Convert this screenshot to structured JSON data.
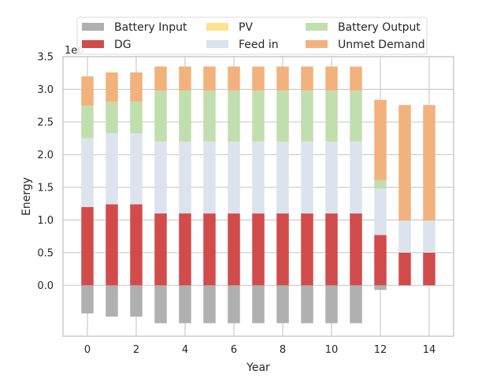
{
  "chart_data": {
    "type": "bar",
    "stacked": true,
    "title": "",
    "xlabel": "Year",
    "ylabel": "Energy",
    "y_offset_text": "1e6",
    "grid": true,
    "legend_placement": "top-center",
    "xlim": [
      -1,
      15
    ],
    "ylim": [
      -0.78,
      3.5
    ],
    "x_ticks": [
      0,
      2,
      4,
      6,
      8,
      10,
      12,
      14
    ],
    "y_ticks": [
      0.0,
      0.5,
      1.0,
      1.5,
      2.0,
      2.5,
      3.0,
      3.5
    ],
    "y_tick_labels": [
      "0.0",
      "0.5",
      "1.0",
      "1.5",
      "2.0",
      "2.5",
      "3.0",
      "3.5"
    ],
    "x": [
      0,
      1,
      2,
      3,
      4,
      5,
      6,
      7,
      8,
      9,
      10,
      11,
      12,
      13,
      14
    ],
    "series": [
      {
        "name": "Battery Input",
        "color": "#b0b0b0",
        "values": [
          -0.43,
          -0.48,
          -0.48,
          -0.58,
          -0.58,
          -0.58,
          -0.58,
          -0.58,
          -0.58,
          -0.58,
          -0.58,
          -0.58,
          -0.07,
          0,
          0
        ]
      },
      {
        "name": "DG",
        "color": "#d24b4b",
        "values": [
          1.2,
          1.24,
          1.24,
          1.1,
          1.1,
          1.1,
          1.1,
          1.1,
          1.1,
          1.1,
          1.1,
          1.1,
          0.77,
          0.5,
          0.5
        ]
      },
      {
        "name": "PV",
        "color": "#fde28f",
        "values": [
          0,
          0,
          0,
          0,
          0,
          0,
          0,
          0,
          0,
          0,
          0,
          0,
          0,
          0,
          0
        ]
      },
      {
        "name": "Feed in",
        "color": "#dce3ed",
        "values": [
          1.05,
          1.09,
          1.09,
          1.1,
          1.1,
          1.1,
          1.1,
          1.1,
          1.1,
          1.1,
          1.1,
          1.1,
          0.71,
          0.49,
          0.49
        ]
      },
      {
        "name": "Battery Output",
        "color": "#c1dfae",
        "values": [
          0.5,
          0.48,
          0.48,
          0.78,
          0.78,
          0.78,
          0.78,
          0.78,
          0.78,
          0.78,
          0.78,
          0.78,
          0.13,
          0,
          0
        ]
      },
      {
        "name": "Unmet Demand",
        "color": "#f2b27d",
        "values": [
          0.45,
          0.45,
          0.45,
          0.37,
          0.37,
          0.37,
          0.37,
          0.37,
          0.37,
          0.37,
          0.37,
          0.37,
          1.23,
          1.77,
          1.77
        ]
      }
    ]
  }
}
